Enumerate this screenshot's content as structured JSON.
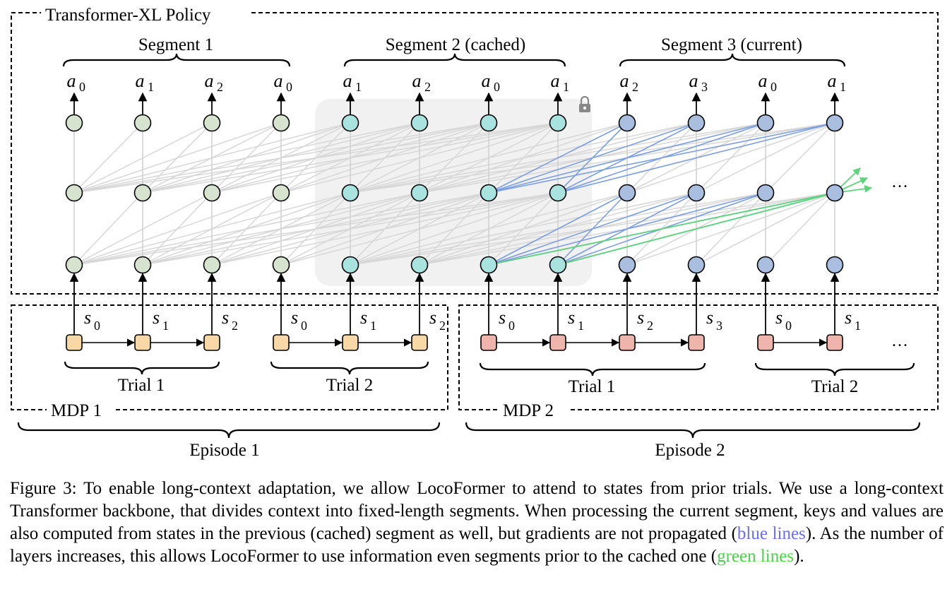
{
  "policy_label": "Transformer-XL Policy",
  "segments": [
    "Segment 1",
    "Segment 2 (cached)",
    "Segment 3 (current)"
  ],
  "actions": [
    {
      "a": "a",
      "sub": "0"
    },
    {
      "a": "a",
      "sub": "1"
    },
    {
      "a": "a",
      "sub": "2"
    },
    {
      "a": "a",
      "sub": "0"
    },
    {
      "a": "a",
      "sub": "1"
    },
    {
      "a": "a",
      "sub": "2"
    },
    {
      "a": "a",
      "sub": "0"
    },
    {
      "a": "a",
      "sub": "1"
    },
    {
      "a": "a",
      "sub": "2"
    },
    {
      "a": "a",
      "sub": "3"
    },
    {
      "a": "a",
      "sub": "0"
    },
    {
      "a": "a",
      "sub": "1"
    }
  ],
  "states": [
    {
      "s": "s",
      "sub": "0"
    },
    {
      "s": "s",
      "sub": "1"
    },
    {
      "s": "s",
      "sub": "2"
    },
    {
      "s": "s",
      "sub": "0"
    },
    {
      "s": "s",
      "sub": "1"
    },
    {
      "s": "s",
      "sub": "2"
    },
    {
      "s": "s",
      "sub": "0"
    },
    {
      "s": "s",
      "sub": "1"
    },
    {
      "s": "s",
      "sub": "2"
    },
    {
      "s": "s",
      "sub": "3"
    },
    {
      "s": "s",
      "sub": "0"
    },
    {
      "s": "s",
      "sub": "1"
    }
  ],
  "trials": [
    "Trial 1",
    "Trial 2",
    "Trial 1",
    "Trial 2"
  ],
  "mdps": [
    "MDP 1",
    "MDP 2"
  ],
  "episodes": [
    "Episode 1",
    "Episode 2"
  ],
  "ellipsis": "…",
  "colors": {
    "segment1_node": "#d6e4cf",
    "segment2_node": "#a9e3df",
    "segment3_node": "#aabee0",
    "mdp1_state": "#f8d8a6",
    "mdp2_state": "#efb5ad",
    "blue_line": "#7b9ee0",
    "green_line": "#5ed27c",
    "gray_line": "#d7d7d7",
    "cache_bg": "#f1f1f1"
  },
  "caption": {
    "label": "Figure 3:",
    "text1": " To enable long-context adaptation, we allow LocoFormer to attend to states from prior trials. We use a long-context Transformer backbone, that divides context into fixed-length segments. When processing the current segment, keys and values are also computed from states in the previous (cached) segment as well, but gradients are not propagated (",
    "blue": "blue lines",
    "text2": "). As the number of layers increases, this allows LocoFormer to use information even segments prior to the cached one (",
    "green": "green lines",
    "text3": ")."
  }
}
